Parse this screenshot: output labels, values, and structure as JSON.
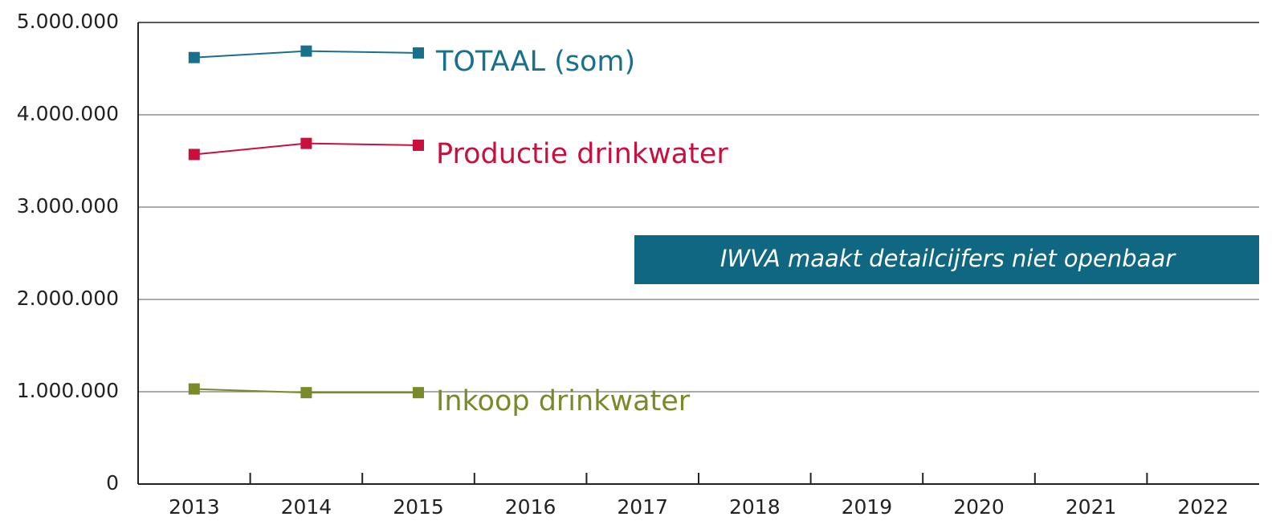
{
  "chart_data": {
    "type": "line",
    "categories": [
      "2013",
      "2014",
      "2015",
      "2016",
      "2017",
      "2018",
      "2019",
      "2020",
      "2021",
      "2022"
    ],
    "series": [
      {
        "name": "TOTAAL (som)",
        "color": "#17708c",
        "values": [
          4620000,
          4690000,
          4670000,
          null,
          null,
          null,
          null,
          null,
          null,
          null
        ]
      },
      {
        "name": "Productie drinkwater",
        "color": "#c8103f",
        "values": [
          3570000,
          3690000,
          3670000,
          null,
          null,
          null,
          null,
          null,
          null,
          null
        ]
      },
      {
        "name": "Inkoop drinkwater",
        "color": "#798a2a",
        "values": [
          1030000,
          990000,
          990000,
          null,
          null,
          null,
          null,
          null,
          null,
          null
        ]
      }
    ],
    "annotation": "IWVA maakt detailcijfers niet openbaar",
    "ylim": [
      0,
      5000000
    ],
    "yticks": [
      0,
      {
        "value": 1000000,
        "label": "1.000.000"
      },
      {
        "value": 2000000,
        "label": "2.000.000"
      },
      {
        "value": 3000000,
        "label": "3.000.000"
      },
      {
        "value": 4000000,
        "label": "4.000.000"
      },
      {
        "value": 5000000,
        "label": "5.000.000"
      }
    ],
    "grid": true
  }
}
